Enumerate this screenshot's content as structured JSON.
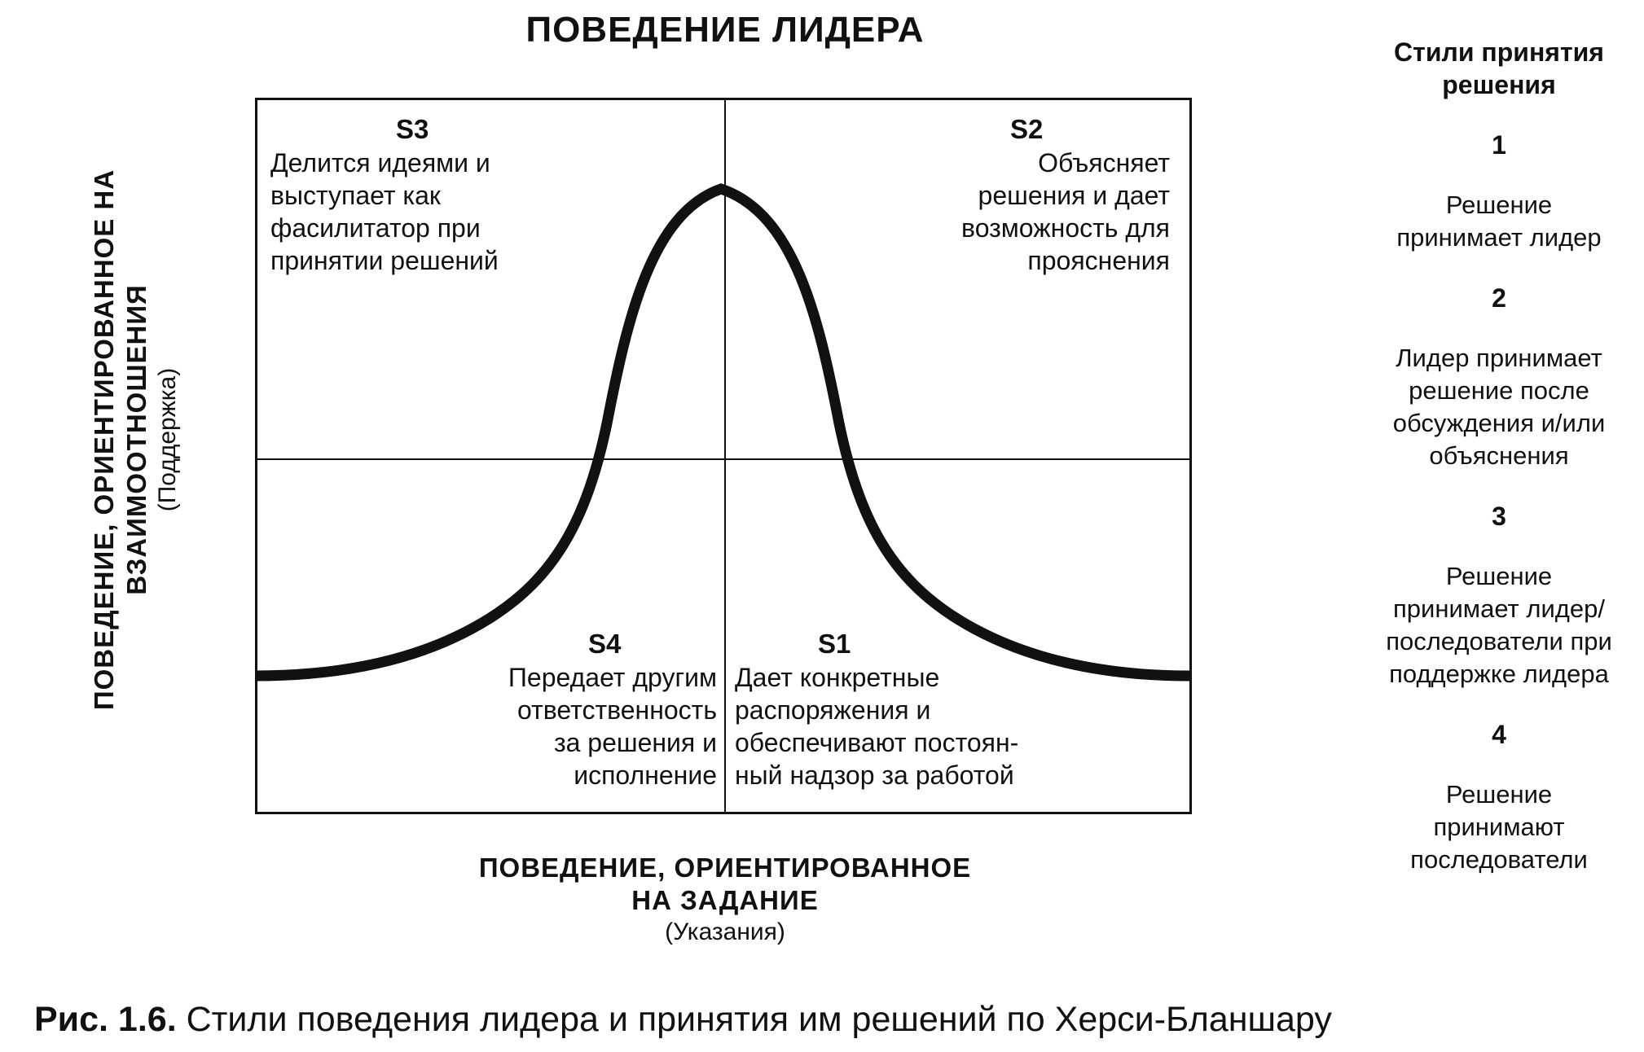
{
  "title": "ПОВЕДЕНИЕ ЛИДЕРА",
  "quadrants": {
    "s3": {
      "label": "S3",
      "text": "Делится идеями и\nвыступает как\nфасилитатор при\nпринятии решений"
    },
    "s2": {
      "label": "S2",
      "text": "Объясняет\nрешения и дает\nвозможность для\nпрояснения"
    },
    "s4": {
      "label": "S4",
      "text": "Передает другим\nответственность\nза решения и\nисполнение"
    },
    "s1": {
      "label": "S1",
      "text": "Дает конкретные\nраспоряжения и\nобеспечивают постоян-\nный надзор за работой"
    }
  },
  "y_axis": {
    "title": "ПОВЕДЕНИЕ, ОРИЕНТИРОВАННОЕ НА\nВЗАИМООТНОШЕНИЯ",
    "subtitle": "(Поддержка)"
  },
  "x_axis": {
    "title": "ПОВЕДЕНИЕ, ОРИЕНТИРОВАННОЕ\nНА ЗАДАНИЕ",
    "subtitle": "(Указания)"
  },
  "decision_styles": {
    "title": "Стили принятия\nрешения",
    "items": [
      {
        "number": "1",
        "text": "Решение\nпринимает лидер"
      },
      {
        "number": "2",
        "text": "Лидер принимает\nрешение после\nобсуждения и/или\nобъяснения"
      },
      {
        "number": "3",
        "text": "Решение\nпринимает лидер/\nпоследователи при\nподдержке лидера"
      },
      {
        "number": "4",
        "text": "Решение\nпринимают\nпоследователи"
      }
    ]
  },
  "caption": {
    "label": "Рис. 1.6.",
    "text": "Стили поведения лидера и принятия им решений по Херси-Бланшару"
  },
  "colors": {
    "ink": "#111111",
    "background": "#ffffff"
  }
}
